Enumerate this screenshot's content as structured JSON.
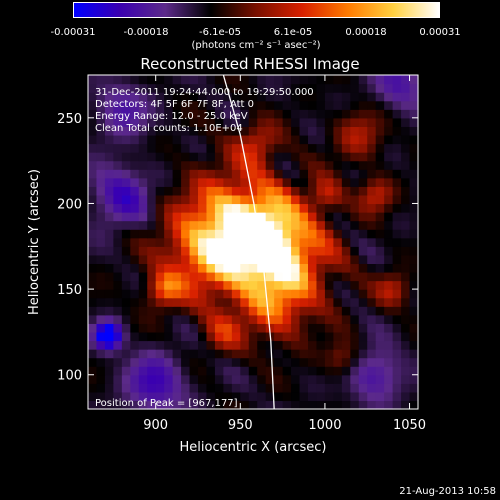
{
  "colorbar": {
    "colors": [
      "#0000ff",
      "#3a00b0",
      "#5c2a8a",
      "#000000",
      "#7a1000",
      "#d82000",
      "#ff7a00",
      "#ffd040",
      "#ffffff"
    ],
    "ticks": [
      "-0.00031",
      "-0.00018",
      "-6.1e-05",
      "6.1e-05",
      "0.00018",
      "0.00031"
    ],
    "unit": "(photons cm⁻² s⁻¹ asec⁻²)"
  },
  "chart_data": {
    "type": "heatmap",
    "title": "Reconstructed RHESSI Image",
    "xlabel": "Heliocentric X (arcsec)",
    "ylabel": "Heliocentric Y (arcsec)",
    "xlim": [
      860,
      1055
    ],
    "ylim": [
      80,
      275
    ],
    "xticks": [
      900,
      950,
      1000,
      1050
    ],
    "yticks": [
      100,
      150,
      200,
      250
    ],
    "peak": [
      967,
      177
    ],
    "limb_points": [
      [
        940,
        275
      ],
      [
        950,
        240
      ],
      [
        958,
        200
      ],
      [
        964,
        160
      ],
      [
        968,
        120
      ],
      [
        970,
        80
      ]
    ],
    "annotations": [
      "31-Dec-2011 19:24:44.000 to 19:29:50.000",
      "Detectors: 4F 5F 6F 7F 8F, Att 0",
      "Energy Range: 12.0 - 25.0 keV",
      "Clean    Total counts: 1.10E+04"
    ],
    "peak_label": "Position of Peak = [967,177]",
    "blobs": [
      {
        "x": 964,
        "y": 178,
        "r": 22,
        "v": 1.0
      },
      {
        "x": 948,
        "y": 190,
        "r": 30,
        "v": 0.8
      },
      {
        "x": 930,
        "y": 170,
        "r": 26,
        "v": 0.65
      },
      {
        "x": 980,
        "y": 165,
        "r": 26,
        "v": 0.6
      },
      {
        "x": 970,
        "y": 140,
        "r": 20,
        "v": 0.5
      },
      {
        "x": 905,
        "y": 150,
        "r": 10,
        "v": 0.6
      },
      {
        "x": 1000,
        "y": 205,
        "r": 10,
        "v": 0.45
      },
      {
        "x": 1030,
        "y": 205,
        "r": 10,
        "v": 0.45
      },
      {
        "x": 1040,
        "y": 150,
        "r": 10,
        "v": 0.4
      },
      {
        "x": 960,
        "y": 235,
        "r": 12,
        "v": 0.45
      },
      {
        "x": 940,
        "y": 125,
        "r": 12,
        "v": 0.4
      },
      {
        "x": 1010,
        "y": 110,
        "r": 10,
        "v": 0.35
      },
      {
        "x": 1020,
        "y": 240,
        "r": 14,
        "v": 0.4
      },
      {
        "x": 872,
        "y": 123,
        "r": 8,
        "v": -0.9
      },
      {
        "x": 880,
        "y": 205,
        "r": 18,
        "v": -0.45
      },
      {
        "x": 1045,
        "y": 270,
        "r": 16,
        "v": -0.35
      },
      {
        "x": 1030,
        "y": 100,
        "r": 16,
        "v": -0.4
      },
      {
        "x": 900,
        "y": 95,
        "r": 18,
        "v": -0.45
      },
      {
        "x": 880,
        "y": 255,
        "r": 16,
        "v": -0.35
      }
    ]
  },
  "footer": "21-Aug-2013 10:58"
}
